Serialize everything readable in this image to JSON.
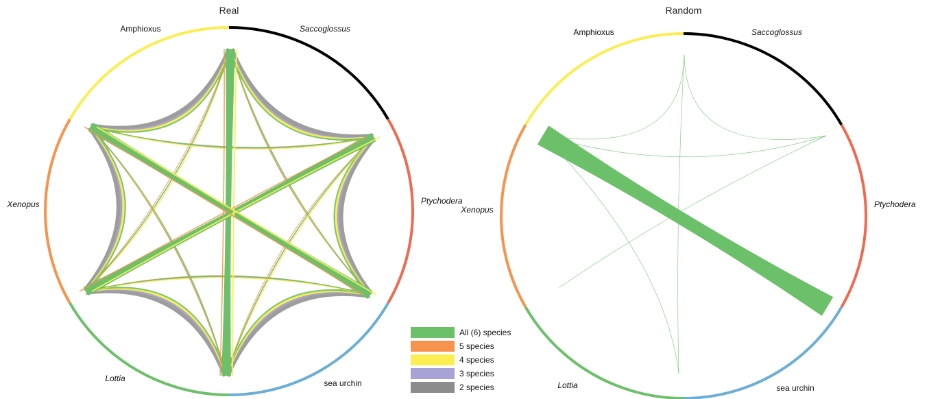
{
  "panels": [
    {
      "title": "Real",
      "segments": [
        {
          "label": "Saccoglossus",
          "italic": true,
          "color": "#000000"
        },
        {
          "label": "Ptychodera",
          "italic": true,
          "color": "#EF6A4E"
        },
        {
          "label": "sea urchin",
          "italic": false,
          "color": "#6BAED6"
        },
        {
          "label": "Lottia",
          "italic": true,
          "color": "#6CC06A"
        },
        {
          "label": "Xenopus",
          "italic": true,
          "color": "#F7934C"
        },
        {
          "label": "Amphioxus",
          "italic": false,
          "color": "#FBEE52"
        }
      ]
    },
    {
      "title": "Random",
      "segments": [
        {
          "label": "Saccoglossus",
          "italic": true,
          "color": "#000000"
        },
        {
          "label": "Ptychodera",
          "italic": true,
          "color": "#EF6A4E"
        },
        {
          "label": "sea urchin",
          "italic": false,
          "color": "#6BAED6"
        },
        {
          "label": "Lottia",
          "italic": true,
          "color": "#6CC06A"
        },
        {
          "label": "Xenopus",
          "italic": true,
          "color": "#F7934C"
        },
        {
          "label": "Amphioxus",
          "italic": false,
          "color": "#FBEE52"
        }
      ]
    }
  ],
  "legend": [
    {
      "label": "All (6) species",
      "color": "#6CC06A"
    },
    {
      "label": "5 species",
      "color": "#F7934C"
    },
    {
      "label": "4 species",
      "color": "#FBEE52"
    },
    {
      "label": "3 species",
      "color": "#A7A3D4"
    },
    {
      "label": "2 species",
      "color": "#8C8C8C"
    }
  ]
}
